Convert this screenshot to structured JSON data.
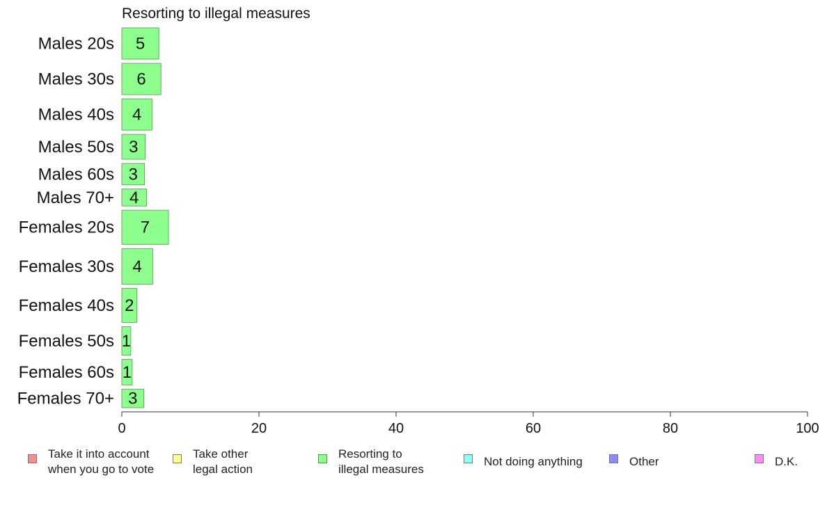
{
  "chart_data": {
    "type": "bar",
    "orientation": "horizontal",
    "title": "Resorting to illegal measures",
    "categories": [
      "Males 20s",
      "Males 30s",
      "Males 40s",
      "Males 50s",
      "Males 60s",
      "Males 70+",
      "Females 20s",
      "Females 30s",
      "Females 40s",
      "Females 50s",
      "Females 60s",
      "Females 70+"
    ],
    "values": [
      5.4,
      5.7,
      4.4,
      3.4,
      3.3,
      3.6,
      6.8,
      4.5,
      2.2,
      1.3,
      1.5,
      3.2
    ],
    "value_labels": [
      "5",
      "6",
      "4",
      "3",
      "3",
      "4",
      "7",
      "4",
      "2",
      "1",
      "1",
      "3"
    ],
    "group_weights": [
      44,
      44,
      44,
      35,
      30,
      24,
      48,
      50,
      48,
      40,
      36,
      26
    ],
    "xlim": [
      0,
      100
    ],
    "xticks": [
      "0",
      "20",
      "40",
      "60",
      "80",
      "100"
    ],
    "bar_color": "#8cff8c",
    "legend_position": "bottom",
    "legend": [
      {
        "label": "Take it into account\nwhen you go to vote",
        "color": "#ff8c8c"
      },
      {
        "label": "Take other\nlegal action",
        "color": "#ffff8c"
      },
      {
        "label": "Resorting to\nillegal measures",
        "color": "#8cff8c"
      },
      {
        "label": "Not doing anything",
        "color": "#8cffff"
      },
      {
        "label": "Other",
        "color": "#8c8cff"
      },
      {
        "label": "D.K.",
        "color": "#ff8cff"
      }
    ]
  }
}
